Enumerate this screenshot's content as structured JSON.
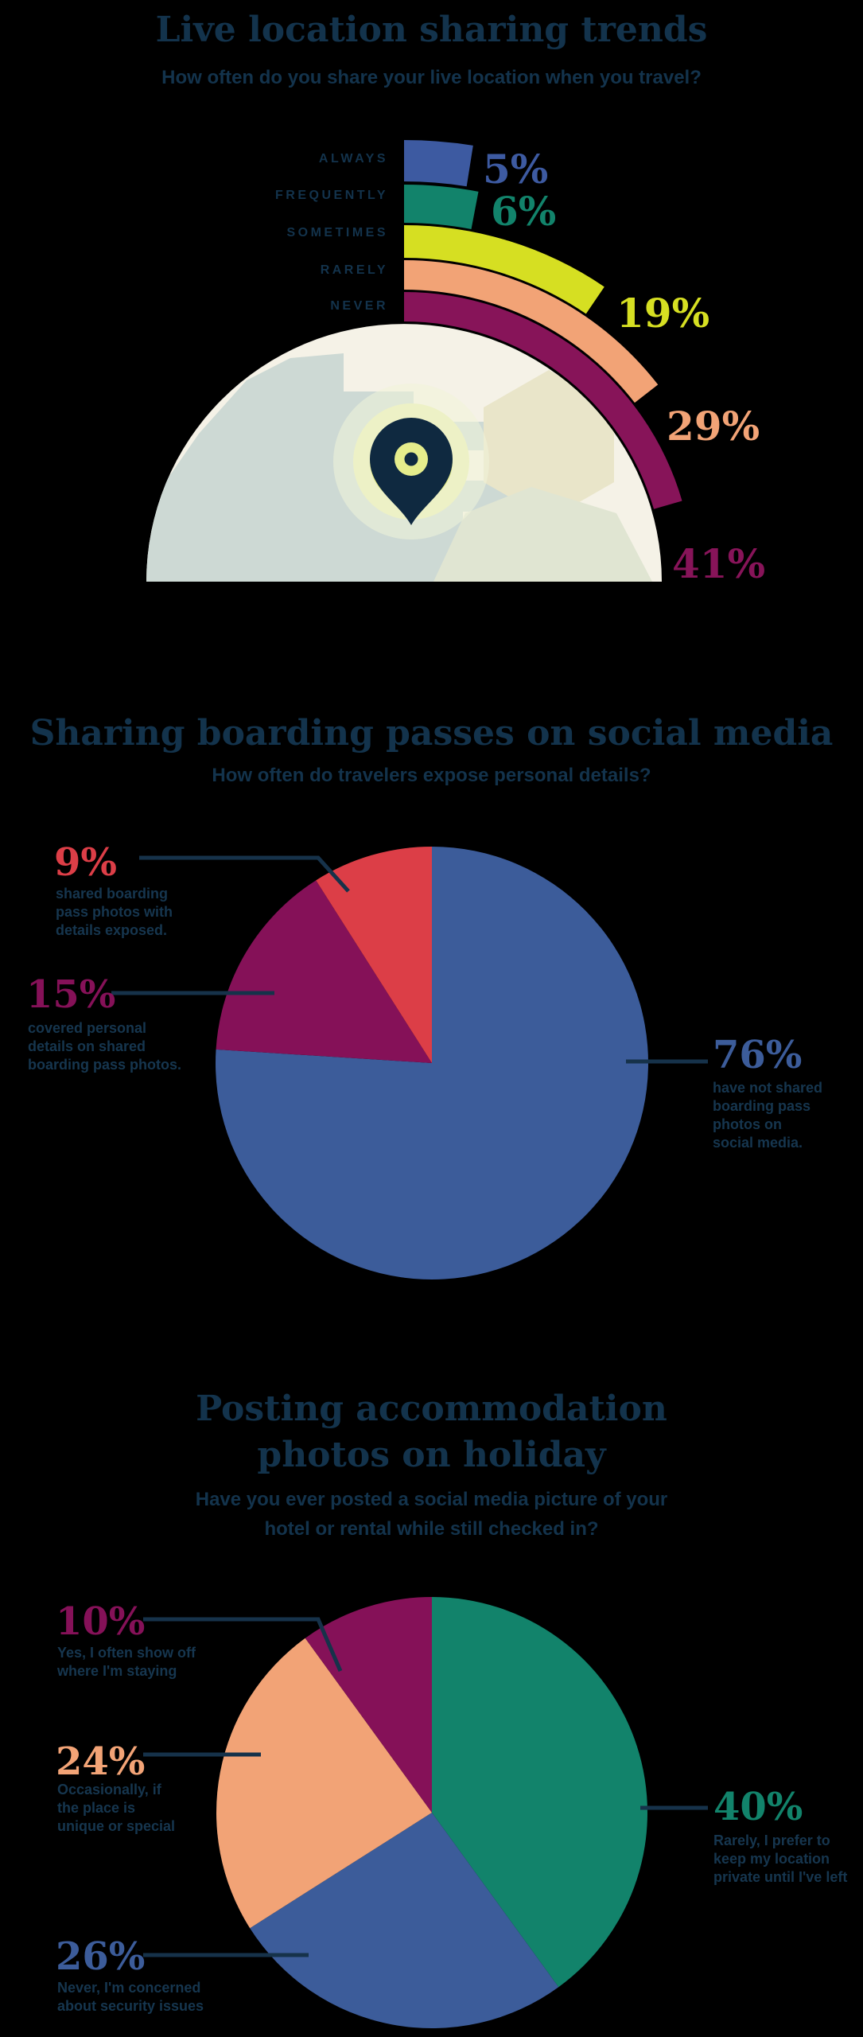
{
  "style": {
    "background": "#000000",
    "heading_color": "#13334c",
    "body_color": "#16364f",
    "callout_color": "#16324a"
  },
  "chart_data": [
    {
      "type": "radial-bar",
      "title": "Live location sharing trends",
      "subtitle": "How often do you share your live location when you travel?",
      "layout_hint": "semicircular gauge, 100% = 180 degrees, bars sweep clockwise from top",
      "categories": [
        "ALWAYS",
        "FREQUENTLY",
        "SOMETIMES",
        "RARELY",
        "NEVER"
      ],
      "values": [
        5,
        6,
        19,
        29,
        41
      ],
      "series": [
        {
          "label": "ALWAYS",
          "value": 5,
          "value_label": "5%",
          "color": "#3d5aa1"
        },
        {
          "label": "FREQUENTLY",
          "value": 6,
          "value_label": "6%",
          "color": "#12836b"
        },
        {
          "label": "SOMETIMES",
          "value": 19,
          "value_label": "19%",
          "color": "#d6df22"
        },
        {
          "label": "RARELY",
          "value": 29,
          "value_label": "29%",
          "color": "#f2a376"
        },
        {
          "label": "NEVER",
          "value": 41,
          "value_label": "41%",
          "color": "#871459"
        }
      ],
      "decoration": {
        "globe_fill": "#f5f2e7",
        "land_colors": [
          "#cdd9d4",
          "#e9e5c9",
          "#e0e5d2"
        ],
        "pin_color": "#0f2940",
        "pin_inner_color": "#e5ed8c",
        "halo_colors": [
          "#f1f4d9",
          "#edf1c6",
          "#e2ea84"
        ]
      }
    },
    {
      "type": "pie",
      "title": "Sharing boarding passes on social media",
      "subtitle": "How often do travelers expose personal details?",
      "slices": [
        {
          "value": 76,
          "value_label": "76%",
          "color": "#3c5c9a",
          "desc": "have not shared\nboarding pass\nphotos on\nsocial media."
        },
        {
          "value": 15,
          "value_label": "15%",
          "color": "#851158",
          "desc": "covered personal\ndetails on shared\nboarding pass photos."
        },
        {
          "value": 9,
          "value_label": "9%",
          "color": "#dc3e47",
          "desc": "shared boarding\npass photos with\ndetails exposed."
        }
      ]
    },
    {
      "type": "pie",
      "title": "Posting accommodation\nphotos on holiday",
      "subtitle": "Have you ever posted a social media picture of your\nhotel or rental while still checked in?",
      "slices": [
        {
          "value": 40,
          "value_label": "40%",
          "color": "#12836b",
          "desc": "Rarely, I prefer to\nkeep my location\nprivate until I've left"
        },
        {
          "value": 26,
          "value_label": "26%",
          "color": "#3c5c9a",
          "desc": "Never, I'm concerned\nabout security issues"
        },
        {
          "value": 24,
          "value_label": "24%",
          "color": "#f2a376",
          "desc": "Occasionally, if\nthe place is\nunique or special"
        },
        {
          "value": 10,
          "value_label": "10%",
          "color": "#851158",
          "desc": "Yes, I often show off\nwhere I'm staying"
        }
      ]
    }
  ]
}
